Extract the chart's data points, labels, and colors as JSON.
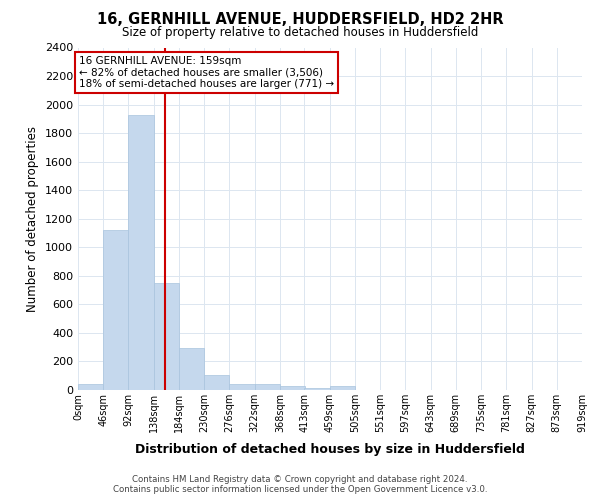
{
  "title": "16, GERNHILL AVENUE, HUDDERSFIELD, HD2 2HR",
  "subtitle": "Size of property relative to detached houses in Huddersfield",
  "xlabel": "Distribution of detached houses by size in Huddersfield",
  "ylabel": "Number of detached properties",
  "bin_edges": [
    0,
    46,
    92,
    138,
    184,
    230,
    276,
    322,
    368,
    413,
    459,
    505,
    551,
    597,
    643,
    689,
    735,
    781,
    827,
    873,
    919
  ],
  "bar_heights": [
    40,
    1120,
    1930,
    750,
    295,
    105,
    45,
    40,
    30,
    15,
    30,
    0,
    0,
    0,
    0,
    0,
    0,
    0,
    0,
    0
  ],
  "bar_color": "#c5d8ed",
  "bar_edge_color": "#a8c4de",
  "vline_x": 159,
  "vline_color": "#cc0000",
  "annotation_box_color": "#cc0000",
  "annotation_text_line1": "16 GERNHILL AVENUE: 159sqm",
  "annotation_text_line2": "← 82% of detached houses are smaller (3,506)",
  "annotation_text_line3": "18% of semi-detached houses are larger (771) →",
  "ylim": [
    0,
    2400
  ],
  "yticks": [
    0,
    200,
    400,
    600,
    800,
    1000,
    1200,
    1400,
    1600,
    1800,
    2000,
    2200,
    2400
  ],
  "x_tick_labels": [
    "0sqm",
    "46sqm",
    "92sqm",
    "138sqm",
    "184sqm",
    "230sqm",
    "276sqm",
    "322sqm",
    "368sqm",
    "413sqm",
    "459sqm",
    "505sqm",
    "551sqm",
    "597sqm",
    "643sqm",
    "689sqm",
    "735sqm",
    "781sqm",
    "827sqm",
    "873sqm",
    "919sqm"
  ],
  "footer_line1": "Contains HM Land Registry data © Crown copyright and database right 2024.",
  "footer_line2": "Contains public sector information licensed under the Open Government Licence v3.0.",
  "background_color": "#ffffff",
  "grid_color": "#dce6f0"
}
